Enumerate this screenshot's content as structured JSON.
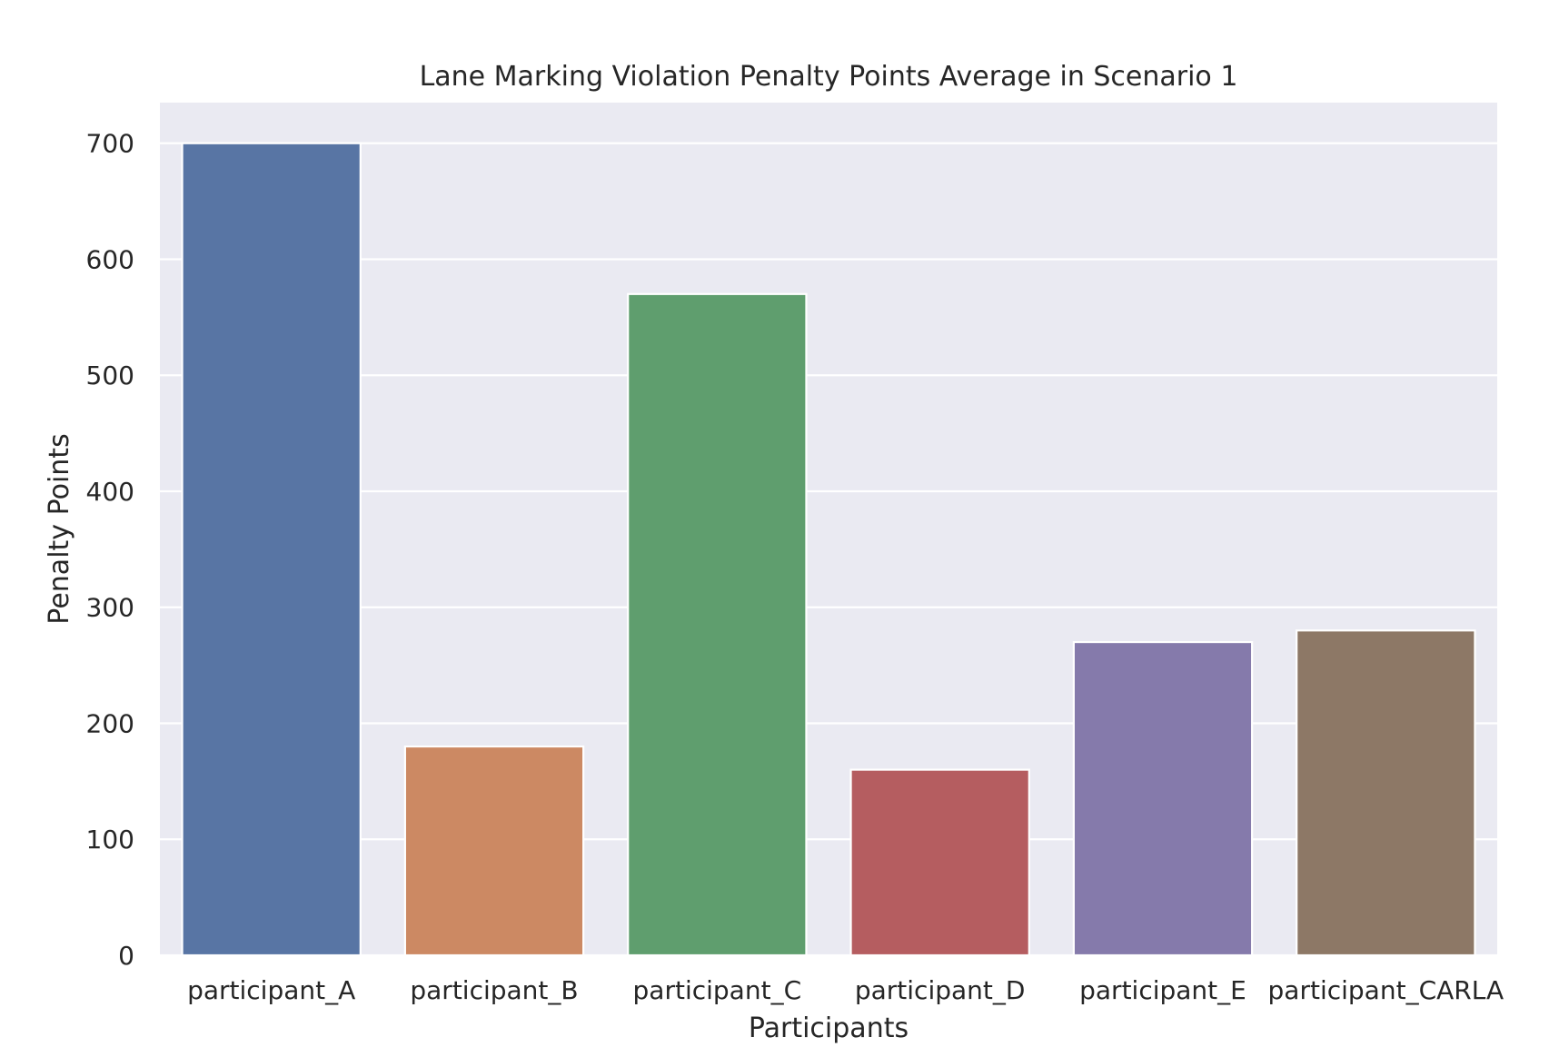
{
  "chart_data": {
    "type": "bar",
    "title": "Lane Marking Violation Penalty Points Average in Scenario 1",
    "xlabel": "Participants",
    "ylabel": "Penalty Points",
    "categories": [
      "participant_A",
      "participant_B",
      "participant_C",
      "participant_D",
      "participant_E",
      "participant_CARLA"
    ],
    "values": [
      700,
      180,
      570,
      160,
      270,
      280
    ],
    "colors": [
      "#5875a4",
      "#cc8963",
      "#5f9e6e",
      "#b55d60",
      "#857aab",
      "#8d7866"
    ],
    "yticks": [
      0,
      100,
      200,
      300,
      400,
      500,
      600,
      700
    ],
    "ylim": [
      0,
      735
    ],
    "grid": true,
    "legend": "none",
    "background": "#eaeaf2",
    "grid_color": "#ffffff"
  }
}
